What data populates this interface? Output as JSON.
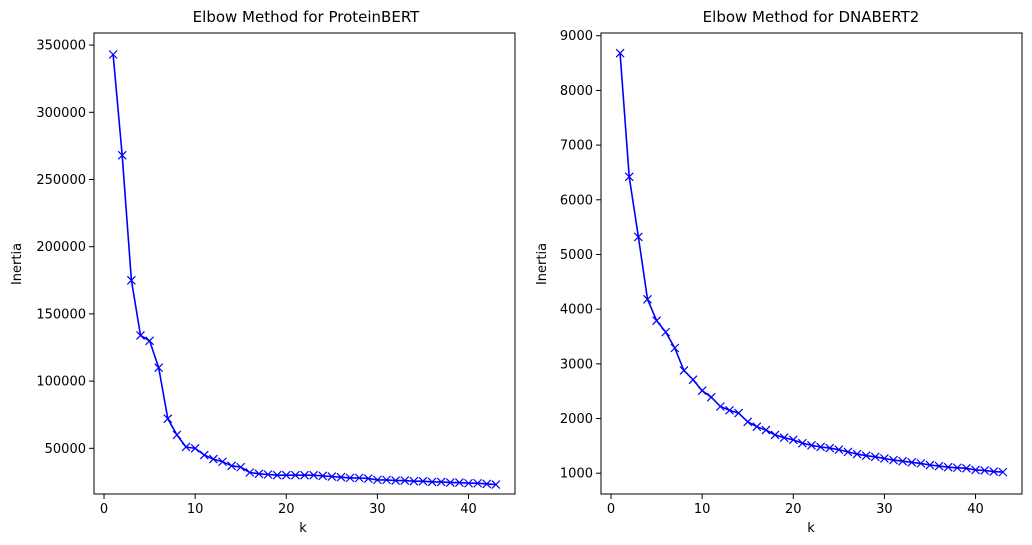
{
  "chart_data": [
    {
      "type": "line",
      "title": "Elbow Method for ProteinBERT",
      "xlabel": "k",
      "ylabel": "Inertia",
      "xlim": [
        -1.1,
        45.1
      ],
      "ylim": [
        16000,
        359000
      ],
      "xticks": [
        0,
        10,
        20,
        30,
        40
      ],
      "yticks": [
        50000,
        100000,
        150000,
        200000,
        250000,
        300000,
        350000
      ],
      "grid": false,
      "marker": "x",
      "series": [
        {
          "color": "#0000ff",
          "x": [
            1,
            2,
            3,
            4,
            5,
            6,
            7,
            8,
            9,
            10,
            11,
            12,
            13,
            14,
            15,
            16,
            17,
            18,
            19,
            20,
            21,
            22,
            23,
            24,
            25,
            26,
            27,
            28,
            29,
            30,
            31,
            32,
            33,
            34,
            35,
            36,
            37,
            38,
            39,
            40,
            41,
            42,
            43
          ],
          "values": [
            343000,
            268000,
            175000,
            134000,
            130000,
            110000,
            72000,
            60000,
            51000,
            50000,
            45000,
            42000,
            40000,
            37000,
            36000,
            32000,
            31000,
            30500,
            30000,
            30000,
            30000,
            30000,
            30000,
            29500,
            29000,
            28500,
            28000,
            28000,
            27500,
            26500,
            26500,
            26000,
            26000,
            25500,
            25500,
            25000,
            25000,
            24500,
            24500,
            24000,
            24000,
            23500,
            23000
          ]
        }
      ]
    },
    {
      "type": "line",
      "title": "Elbow Method for DNABERT2",
      "xlabel": "k",
      "ylabel": "Inertia",
      "xlim": [
        -1.1,
        45.1
      ],
      "ylim": [
        620,
        9050
      ],
      "xticks": [
        0,
        10,
        20,
        30,
        40
      ],
      "yticks": [
        1000,
        2000,
        3000,
        4000,
        5000,
        6000,
        7000,
        8000,
        9000
      ],
      "grid": false,
      "marker": "x",
      "series": [
        {
          "color": "#0000ff",
          "x": [
            1,
            2,
            3,
            4,
            5,
            6,
            7,
            8,
            9,
            10,
            11,
            12,
            13,
            14,
            15,
            16,
            17,
            18,
            19,
            20,
            21,
            22,
            23,
            24,
            25,
            26,
            27,
            28,
            29,
            30,
            31,
            32,
            33,
            34,
            35,
            36,
            37,
            38,
            39,
            40,
            41,
            42,
            43
          ],
          "values": [
            8680,
            6420,
            5320,
            4180,
            3790,
            3580,
            3290,
            2880,
            2710,
            2510,
            2390,
            2220,
            2150,
            2100,
            1940,
            1850,
            1790,
            1700,
            1650,
            1610,
            1550,
            1510,
            1480,
            1460,
            1430,
            1390,
            1350,
            1320,
            1300,
            1270,
            1240,
            1220,
            1200,
            1180,
            1150,
            1130,
            1110,
            1100,
            1090,
            1060,
            1050,
            1030,
            1020
          ]
        }
      ]
    }
  ]
}
